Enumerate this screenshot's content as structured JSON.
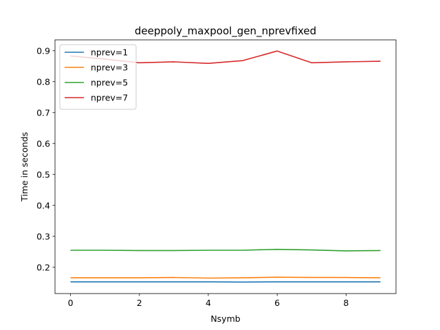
{
  "chart_data": {
    "type": "line",
    "title": "deeppoly_maxpool_gen_nprevfixed",
    "xlabel": "Nsymb",
    "ylabel": "Time in seconds",
    "x": [
      0,
      1,
      2,
      3,
      4,
      5,
      6,
      7,
      8,
      9
    ],
    "xlim": [
      -0.45,
      9.45
    ],
    "ylim": [
      0.115,
      0.935
    ],
    "xticks": [
      0,
      2,
      4,
      6,
      8
    ],
    "yticks": [
      0.2,
      0.3,
      0.4,
      0.5,
      0.6,
      0.7,
      0.8,
      0.9
    ],
    "grid": false,
    "legend_position": "upper-left",
    "series": [
      {
        "name": "nprev=1",
        "color": "#1f77b4",
        "values": [
          0.153,
          0.153,
          0.153,
          0.153,
          0.153,
          0.152,
          0.153,
          0.153,
          0.153,
          0.153
        ]
      },
      {
        "name": "nprev=3",
        "color": "#ff7f0e",
        "values": [
          0.166,
          0.166,
          0.166,
          0.167,
          0.165,
          0.166,
          0.168,
          0.167,
          0.167,
          0.166
        ]
      },
      {
        "name": "nprev=5",
        "color": "#2ca02c",
        "values": [
          0.255,
          0.255,
          0.254,
          0.254,
          0.255,
          0.255,
          0.258,
          0.256,
          0.253,
          0.254
        ]
      },
      {
        "name": "nprev=7",
        "color": "#d62728",
        "values": [
          0.883,
          0.873,
          0.861,
          0.864,
          0.859,
          0.868,
          0.899,
          0.861,
          0.864,
          0.866
        ]
      }
    ]
  }
}
